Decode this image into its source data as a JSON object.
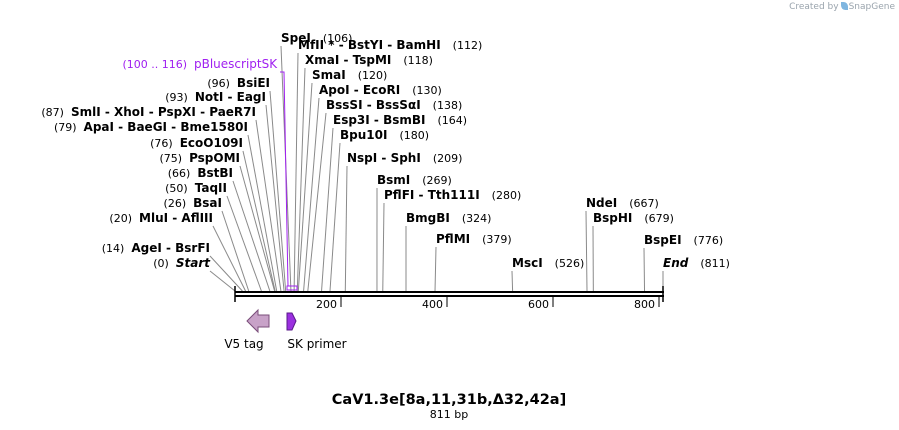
{
  "credit": {
    "created_by": "Created by",
    "brand": "SnapGene"
  },
  "map": {
    "title": "CaV1.3e[8a,11,31b,Δ32,42a]",
    "length_label": "811 bp",
    "length_bp": 811,
    "ticks": [
      "200",
      "400",
      "600",
      "800"
    ],
    "colors": {
      "backbone": "#000000",
      "connector": "#8a8a8a",
      "v5_tag": "#c8a2c8",
      "sk_primer": "#9b30e0",
      "feature_label": "#a020f0"
    }
  },
  "sites": [
    {
      "name": "Start",
      "pos": "(0)",
      "bp": 0,
      "italic": true
    },
    {
      "name": "AgeI  -  BsrFI",
      "pos": "(14)",
      "bp": 14
    },
    {
      "name": "MluI  -  AflIII",
      "pos": "(20)",
      "bp": 20
    },
    {
      "name": "BsaI",
      "pos": "(26)",
      "bp": 26
    },
    {
      "name": "TaqII",
      "pos": "(50)",
      "bp": 50
    },
    {
      "name": "BstBI",
      "pos": "(66)",
      "bp": 66
    },
    {
      "name": "PspOMI",
      "pos": "(75)",
      "bp": 75
    },
    {
      "name": "EcoO109I",
      "pos": "(76)",
      "bp": 76
    },
    {
      "name": "ApaI  -  BaeGI  -  Bme1580I",
      "pos": "(79)",
      "bp": 79
    },
    {
      "name": "SmlI  -  XhoI  -  PspXI  -  PaeR7I",
      "pos": "(87)",
      "bp": 87
    },
    {
      "name": "NotI  -  EagI",
      "pos": "(93)",
      "bp": 93
    },
    {
      "name": "BsiEI",
      "pos": "(96)",
      "bp": 96
    },
    {
      "name": "SpeI",
      "pos": "(106)",
      "bp": 106
    },
    {
      "name": "MfII *  -  BstYI  -  BamHI",
      "pos": "(112)",
      "bp": 112
    },
    {
      "name": "XmaI  -  TspMI",
      "pos": "(118)",
      "bp": 118
    },
    {
      "name": "SmaI",
      "pos": "(120)",
      "bp": 120
    },
    {
      "name": "ApoI  -  EcoRI",
      "pos": "(130)",
      "bp": 130
    },
    {
      "name": "BssSI  -  BssSαI",
      "pos": "(138)",
      "bp": 138
    },
    {
      "name": "Esp3I  -  BsmBI",
      "pos": "(164)",
      "bp": 164
    },
    {
      "name": "Bpu10I",
      "pos": "(180)",
      "bp": 180
    },
    {
      "name": "NspI  -  SphI",
      "pos": "(209)",
      "bp": 209
    },
    {
      "name": "BsmI",
      "pos": "(269)",
      "bp": 269
    },
    {
      "name": "PflFI  -  Tth111I",
      "pos": "(280)",
      "bp": 280
    },
    {
      "name": "BmgBI",
      "pos": "(324)",
      "bp": 324
    },
    {
      "name": "PflMI",
      "pos": "(379)",
      "bp": 379
    },
    {
      "name": "MscI",
      "pos": "(526)",
      "bp": 526
    },
    {
      "name": "NdeI",
      "pos": "(667)",
      "bp": 667
    },
    {
      "name": "BspHI",
      "pos": "(679)",
      "bp": 679
    },
    {
      "name": "BspEI",
      "pos": "(776)",
      "bp": 776
    },
    {
      "name": "End",
      "pos": "(811)",
      "bp": 811,
      "italic": true
    }
  ],
  "features": [
    {
      "name": "pBluescriptSK",
      "range": "(100 .. 116)",
      "start": 100,
      "end": 116
    },
    {
      "name": "V5 tag",
      "start": 30,
      "end": 72,
      "direction": "reverse"
    },
    {
      "name": "SK primer",
      "start": 100,
      "end": 116,
      "direction": "forward"
    }
  ]
}
